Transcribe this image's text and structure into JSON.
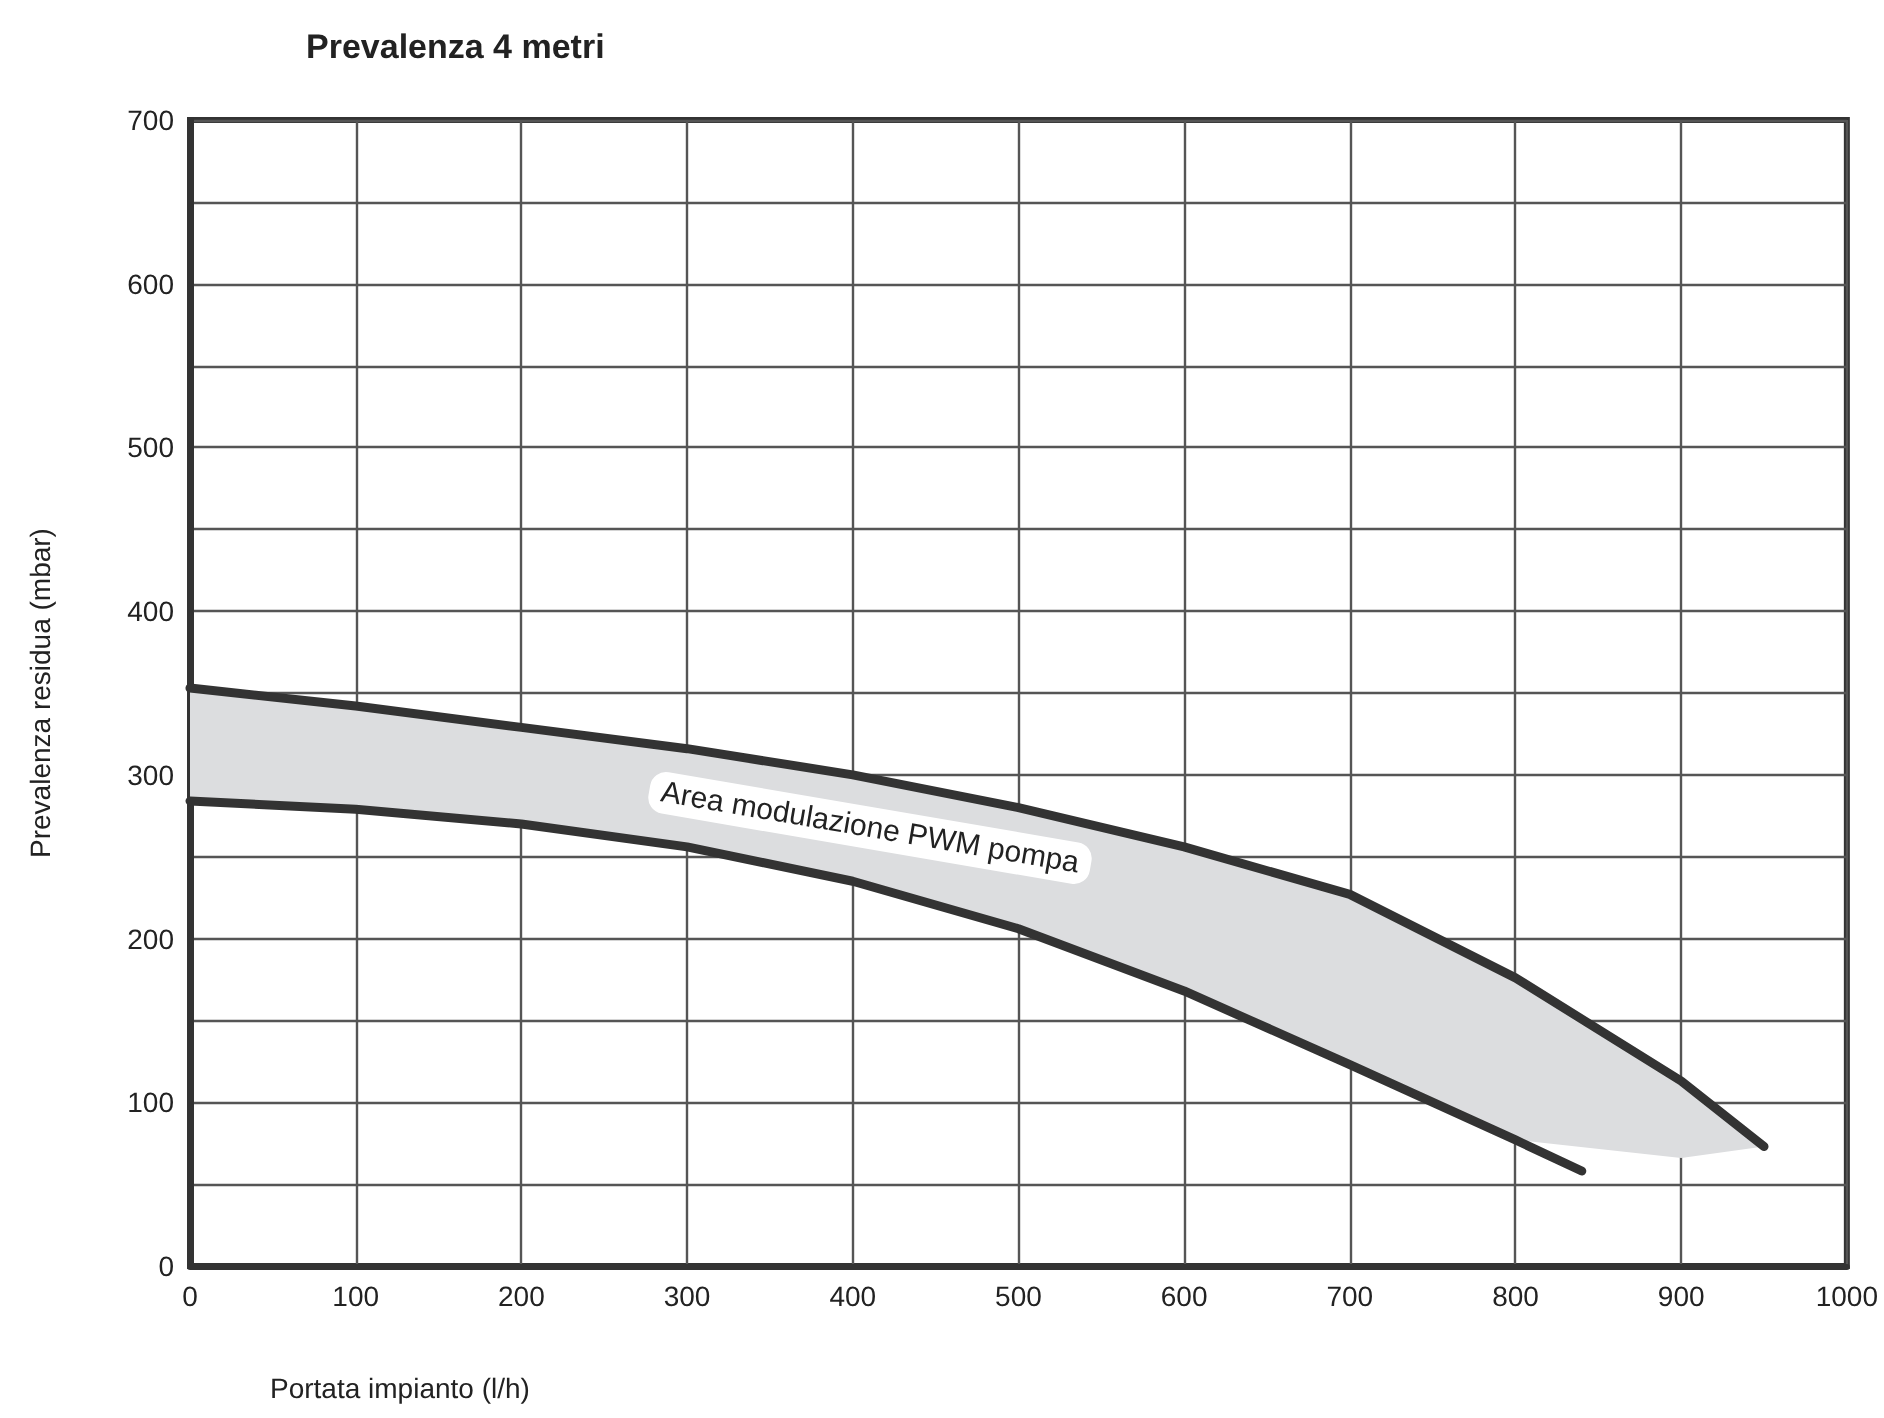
{
  "chart_data": {
    "type": "line",
    "title": "Prevalenza 4 metri",
    "xlabel": "Portata impianto (l/h)",
    "ylabel": "Prevalenza residua (mbar)",
    "xlim": [
      0,
      1000
    ],
    "xticks": [
      0,
      100,
      200,
      300,
      400,
      500,
      600,
      700,
      800,
      900,
      1000
    ],
    "ylim": [
      0,
      700
    ],
    "yticks": [
      0,
      {
        "value": 50,
        "label": null
      },
      100,
      {
        "value": 150,
        "label": null
      },
      200,
      {
        "value": 250,
        "label": null
      },
      300,
      {
        "value": 350,
        "label": null
      },
      400,
      {
        "value": 450,
        "label": null
      },
      500,
      {
        "value": 550,
        "label": null
      },
      600,
      {
        "value": 650,
        "label": null
      },
      700
    ],
    "grid": true,
    "marker": "none",
    "line_style": "solid",
    "annotations": [
      "Area modulazione PWM pompa"
    ],
    "series": [
      {
        "color": "#333333",
        "x": [
          0,
          100,
          200,
          300,
          400,
          500,
          600,
          700,
          800,
          900,
          950
        ],
        "values": [
          353,
          342,
          329,
          316,
          300,
          280,
          256,
          227,
          176,
          113,
          73
        ],
        "lower": [
          284,
          279,
          270,
          256,
          235,
          206,
          168,
          123,
          77,
          66,
          73
        ],
        "upper": [
          353,
          342,
          329,
          316,
          300,
          280,
          256,
          227,
          176,
          113,
          73
        ]
      },
      {
        "color": "#333333",
        "x": [
          0,
          100,
          200,
          300,
          400,
          500,
          600,
          700,
          800,
          840
        ],
        "values": [
          284,
          279,
          270,
          256,
          235,
          206,
          168,
          123,
          77,
          58
        ]
      }
    ]
  }
}
